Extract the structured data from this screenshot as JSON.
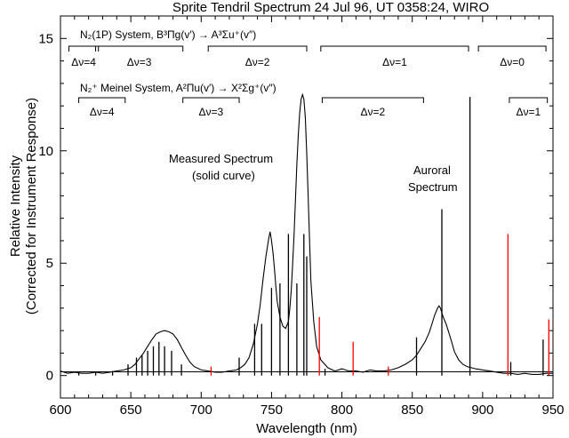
{
  "chart_data": {
    "type": "line",
    "title": "Sprite Tendril Spectrum 24 Jul 96, UT 0358:24, WIRO",
    "xlabel": "Wavelength (nm)",
    "ylabel": "Relative Intensity",
    "ylabel2": "(Corrected for Instrument Response)",
    "xlim": [
      600,
      950
    ],
    "ylim": [
      -1,
      16
    ],
    "x_ticks": [
      600,
      650,
      700,
      750,
      800,
      850,
      900,
      950
    ],
    "y_ticks": [
      0,
      5,
      10,
      15
    ],
    "x_tick_labels": [
      "600",
      "650",
      "700",
      "750",
      "800",
      "850",
      "900",
      "950"
    ],
    "y_tick_labels": [
      "0",
      "5",
      "10",
      "15"
    ],
    "grid": false,
    "annotations": {
      "measured_line1": "Measured Spectrum",
      "measured_line2": "(solid curve)",
      "auroral_line1": "Auroral",
      "auroral_line2": "Spectrum"
    },
    "systems": {
      "n2_1p": "N₂(1P) System, B³Πg(v′) → A³Σu⁺(v″)",
      "n2_meinel": "N₂⁺ Meinel System, A²Πu(v′) → X²Σg⁺(v″)"
    },
    "n2_1p_bands": [
      {
        "label": "Δν=4",
        "x_start": 606,
        "x_end": 627
      },
      {
        "label": "Δν=3",
        "x_start": 625,
        "x_end": 687
      },
      {
        "label": "Δν=2",
        "x_start": 705,
        "x_end": 775
      },
      {
        "label": "Δν=1",
        "x_start": 785,
        "x_end": 890
      },
      {
        "label": "Δν=0",
        "x_start": 897,
        "x_end": 945
      }
    ],
    "meinel_bands": [
      {
        "label": "Δν=4",
        "x_start": 613,
        "x_end": 646
      },
      {
        "label": "Δν=3",
        "x_start": 687,
        "x_end": 727
      },
      {
        "label": "Δν=2",
        "x_start": 786,
        "x_end": 858
      },
      {
        "label": "Δν=1",
        "x_start": 919,
        "x_end": 946
      }
    ],
    "series": [
      {
        "type": "line",
        "x": [
          600,
          605,
          610,
          615,
          620,
          625,
          630,
          635,
          640,
          645,
          650,
          653,
          656,
          659,
          662,
          665,
          668,
          671,
          674,
          677,
          680,
          683,
          686,
          689,
          692,
          695,
          700,
          705,
          710,
          715,
          720,
          725,
          728,
          731,
          734,
          737,
          740,
          742,
          744,
          746,
          748,
          749,
          750,
          751,
          752,
          753,
          754,
          756,
          758,
          760,
          762,
          763,
          764,
          765,
          766,
          767,
          768,
          769,
          770,
          771,
          772,
          773,
          774,
          775,
          776,
          777,
          778,
          780,
          782,
          785,
          790,
          795,
          800,
          805,
          810,
          815,
          820,
          825,
          830,
          835,
          840,
          845,
          850,
          853,
          856,
          859,
          862,
          864,
          866,
          868,
          869,
          870,
          871,
          872,
          873,
          874,
          876,
          878,
          880,
          883,
          886,
          889,
          892,
          895,
          900,
          905,
          910,
          915,
          920,
          925,
          930,
          935,
          940,
          945,
          950
        ],
        "y": [
          0.2,
          0.1,
          0.15,
          0.1,
          0.1,
          0.15,
          0.1,
          0.15,
          0.2,
          0.25,
          0.35,
          0.5,
          0.75,
          1.0,
          1.3,
          1.6,
          1.85,
          1.95,
          2.0,
          1.95,
          1.85,
          1.6,
          1.25,
          0.9,
          0.6,
          0.4,
          0.25,
          0.2,
          0.15,
          0.15,
          0.2,
          0.25,
          0.35,
          0.5,
          0.8,
          1.4,
          2.3,
          3.2,
          4.3,
          5.3,
          6.1,
          6.4,
          6.0,
          5.5,
          4.8,
          4.0,
          3.3,
          2.6,
          2.2,
          2.1,
          2.4,
          3.0,
          3.8,
          5.0,
          6.3,
          7.8,
          9.4,
          10.7,
          11.7,
          12.3,
          12.5,
          12.3,
          11.5,
          9.9,
          8.0,
          6.0,
          4.2,
          2.4,
          1.3,
          0.7,
          0.35,
          0.2,
          0.3,
          0.2,
          0.2,
          0.15,
          0.25,
          0.2,
          0.2,
          0.25,
          0.35,
          0.5,
          0.7,
          0.9,
          1.2,
          1.5,
          1.9,
          2.3,
          2.7,
          3.0,
          3.1,
          3.0,
          2.8,
          2.6,
          2.45,
          2.3,
          1.9,
          1.5,
          1.05,
          0.7,
          0.5,
          0.4,
          0.35,
          0.3,
          0.25,
          0.2,
          0.15,
          0.1,
          0.1,
          0.05,
          0.1,
          0.05,
          0.05,
          0.1,
          0.1
        ]
      },
      {
        "type": "stick",
        "color": "#000000",
        "x": [
          613,
          625,
          637,
          648,
          654,
          658,
          662,
          666,
          670,
          674,
          679,
          686,
          727,
          738,
          743,
          750,
          756,
          762,
          768,
          773,
          775,
          788,
          853,
          871,
          891,
          920,
          943
        ],
        "y": [
          0.15,
          0.15,
          0.2,
          0.5,
          0.8,
          0.9,
          1.1,
          1.3,
          1.5,
          1.3,
          1.1,
          0.5,
          0.8,
          2.3,
          2.3,
          3.9,
          4.1,
          6.3,
          4.1,
          6.3,
          5.3,
          0.3,
          1.7,
          7.4,
          12.4,
          0.6,
          1.6
        ]
      },
      {
        "type": "stick",
        "color": "#ff0000",
        "x": [
          707,
          784,
          808,
          833,
          918,
          947
        ],
        "y": [
          0.4,
          2.6,
          1.5,
          0.4,
          6.3,
          2.5
        ]
      }
    ]
  }
}
